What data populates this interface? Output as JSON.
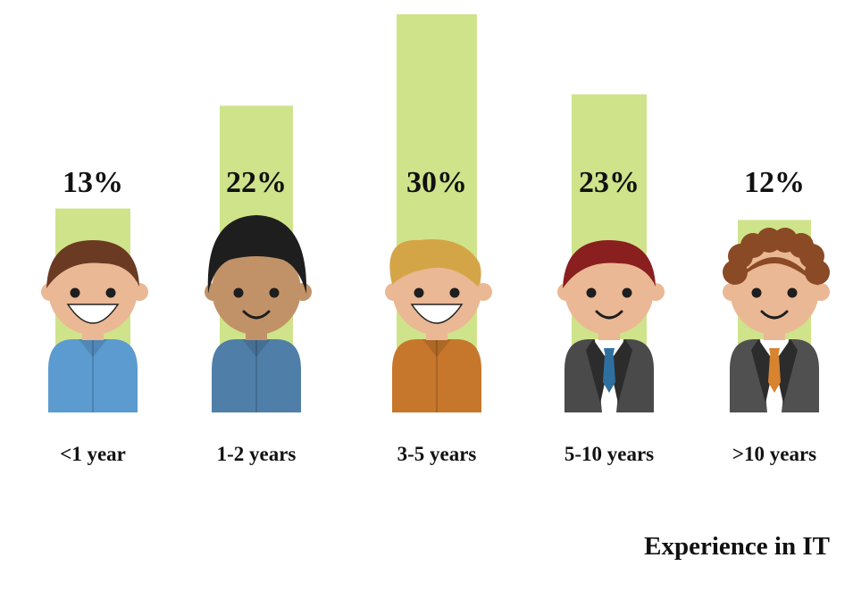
{
  "chart_data": {
    "type": "bar",
    "title": "Experience in IT",
    "categories": [
      "<1 year",
      "1-2 years",
      "3-5 years",
      "5-10 years",
      ">10 years"
    ],
    "values": [
      13,
      22,
      30,
      23,
      12
    ],
    "value_labels": [
      "13%",
      "22%",
      "30%",
      "23%",
      "12%"
    ],
    "unit": "%",
    "ylim": [
      0,
      30
    ],
    "grid": false,
    "bar_color": "#cfe38a",
    "avatars": [
      {
        "name": "avatar-1-icon",
        "skin": "#eab894",
        "hair": "#6b3a23",
        "hair_style": "side",
        "shirt": "#5b9bd0",
        "mouth": "grin",
        "tie": null,
        "suit": null
      },
      {
        "name": "avatar-2-icon",
        "skin": "#c19268",
        "hair": "#1e1e1e",
        "hair_style": "round",
        "shirt": "#4f7fa8",
        "mouth": "smile",
        "tie": null,
        "suit": null
      },
      {
        "name": "avatar-3-icon",
        "skin": "#eab894",
        "hair": "#d4a547",
        "hair_style": "quiff",
        "shirt": "#c7772c",
        "mouth": "grin",
        "tie": null,
        "suit": null
      },
      {
        "name": "avatar-4-icon",
        "skin": "#eab894",
        "hair": "#8a1f1f",
        "hair_style": "side",
        "shirt": "#ffffff",
        "mouth": "smile",
        "tie": "#2f6fa0",
        "suit": "#4a4a4a"
      },
      {
        "name": "avatar-5-icon",
        "skin": "#eab894",
        "hair": "#8a4a25",
        "hair_style": "curly",
        "shirt": "#ffffff",
        "mouth": "smile",
        "tie": "#d88330",
        "suit": "#505050"
      }
    ]
  }
}
